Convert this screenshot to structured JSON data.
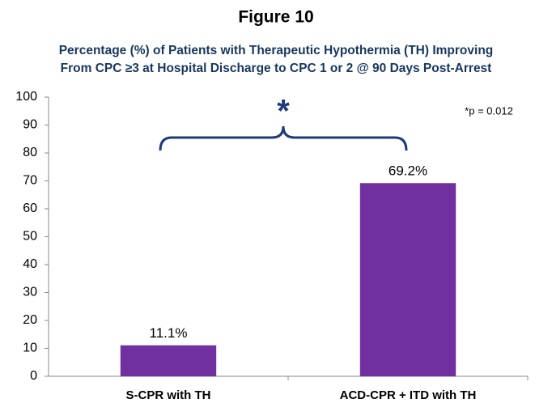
{
  "chart_data": {
    "type": "bar",
    "title": "Figure 10",
    "subtitle": [
      "Percentage (%) of Patients with Therapeutic Hypothermia (TH) Improving",
      "From CPC ≥3 at Hospital Discharge to CPC 1 or 2 @ 90 Days Post-Arrest"
    ],
    "categories": [
      "S-CPR with TH",
      "ACD-CPR + ITD with TH"
    ],
    "values": [
      11.1,
      69.2
    ],
    "value_labels": [
      "11.1%",
      "69.2%"
    ],
    "color": "#7030a0",
    "ylim": [
      0,
      100
    ],
    "yticks": [
      0,
      10,
      20,
      30,
      40,
      50,
      60,
      70,
      80,
      90,
      100
    ],
    "grid": false,
    "annotations": [
      "*",
      "*p = 0.012"
    ]
  }
}
